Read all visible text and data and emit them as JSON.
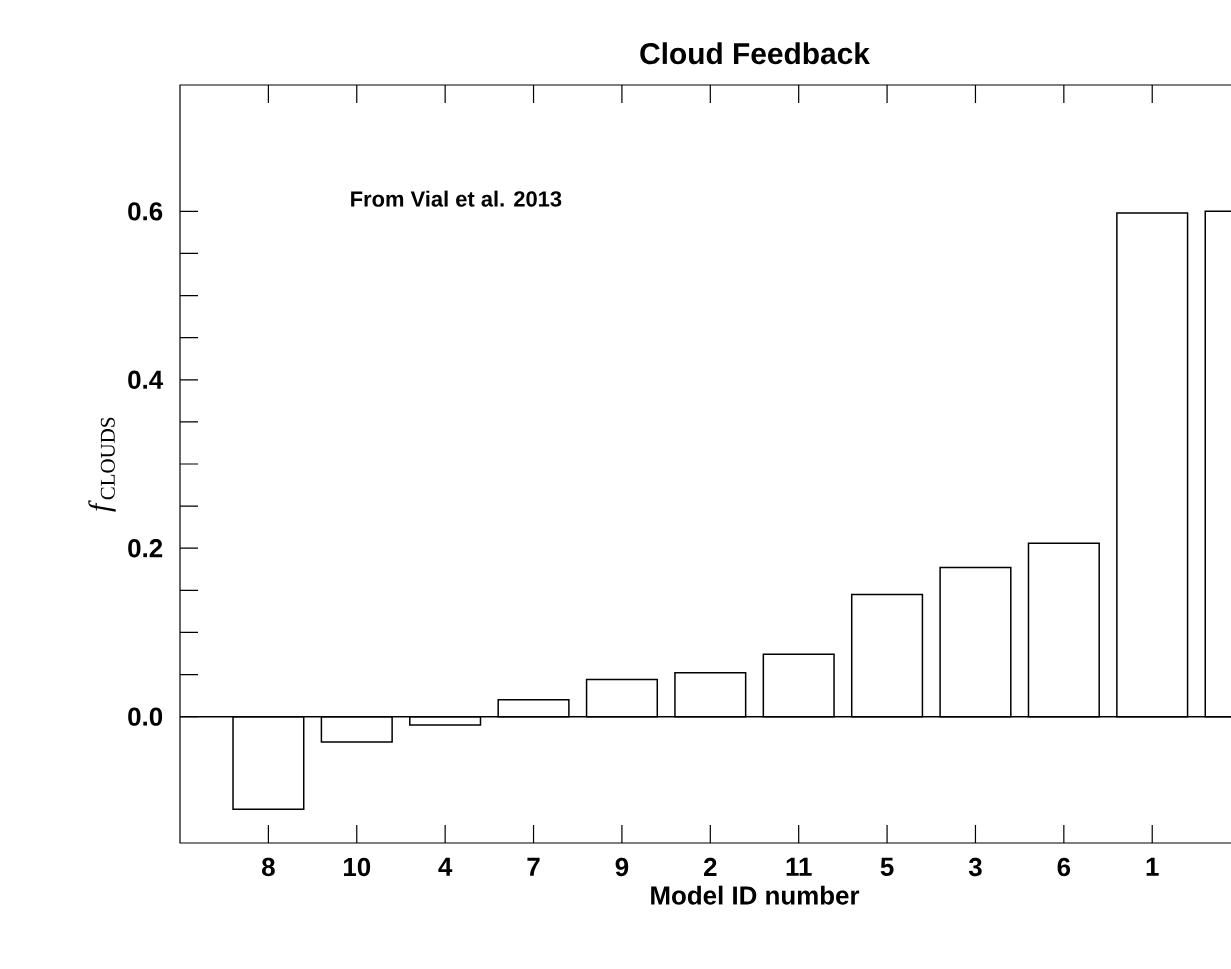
{
  "chart_data": {
    "type": "bar",
    "title": "Cloud Feedback",
    "xlabel": "Model ID number",
    "ylabel": "*f*$_{CLOUDS}$",
    "annotations": [
      "From Vial et al. 2013"
    ],
    "categories": [
      "8",
      "10",
      "4",
      "7",
      "9",
      "2",
      "11",
      "5",
      "3",
      "6",
      "1",
      null
    ],
    "values": [
      -0.11,
      -0.03,
      -0.01,
      0.02,
      0.044,
      0.052,
      0.074,
      0.145,
      0.177,
      0.206,
      0.598,
      0.6
    ],
    "color": "#ffffff",
    "ylim": [
      -0.15,
      0.75
    ],
    "yticks": [
      {
        "value": 0,
        "label": "0.0"
      },
      {
        "value": 0.2,
        "label": "0.2"
      },
      {
        "value": 0.4,
        "label": "0.4"
      },
      {
        "value": 0.6,
        "label": "0.6"
      }
    ],
    "ref_lines": [
      {
        "axis": "y",
        "value": 0,
        "color": "#000000"
      }
    ],
    "grid": false
  }
}
